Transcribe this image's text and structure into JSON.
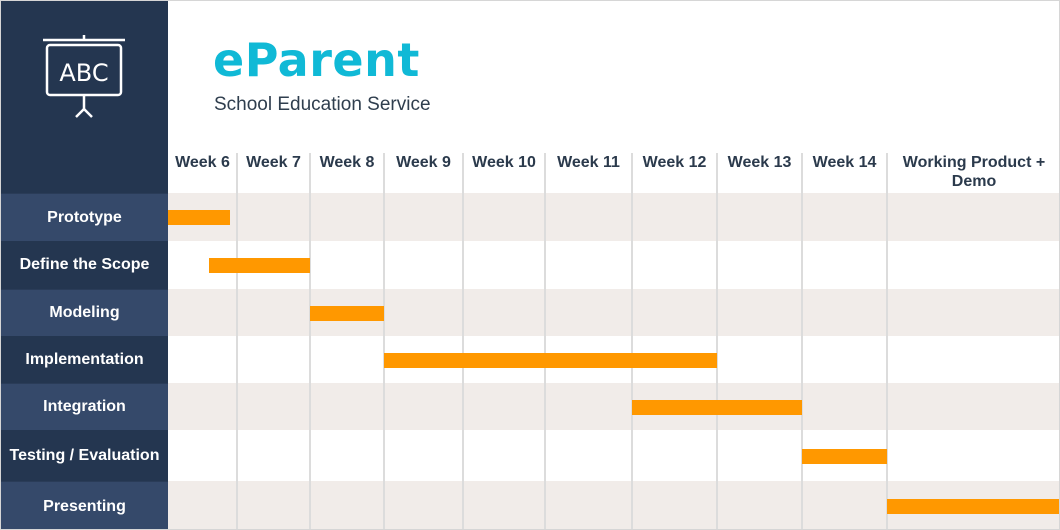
{
  "header": {
    "title": "eParent",
    "subtitle": "School Education Service",
    "logo_icon": "presentation-board-icon",
    "logo_text": "ABC"
  },
  "colors": {
    "sidebar_dark": "#243650",
    "sidebar_light": "#35496a",
    "band_shaded": "#f1ece9",
    "band_plain": "#ffffff",
    "bar": "#ff9800",
    "title": "#10b9d6"
  },
  "chart_data": {
    "type": "gantt",
    "periods": [
      "Week 6",
      "Week 7",
      "Week 8",
      "Week 9",
      "Week 10",
      "Week 11",
      "Week 12",
      "Week 13",
      "Week 14",
      "Working Product + Demo"
    ],
    "tasks": [
      {
        "name": "Prototype",
        "start": 0,
        "end": 0.9
      },
      {
        "name": "Define the Scope",
        "start": 0.6,
        "end": 2.0
      },
      {
        "name": "Modeling",
        "start": 2.0,
        "end": 3.0
      },
      {
        "name": "Implementation",
        "start": 3.0,
        "end": 7.0
      },
      {
        "name": "Integration",
        "start": 6.0,
        "end": 8.0
      },
      {
        "name": "Testing / Evaluation",
        "start": 8.0,
        "end": 9.0
      },
      {
        "name": "Presenting",
        "start": 9.0,
        "end": 10.0
      }
    ]
  }
}
